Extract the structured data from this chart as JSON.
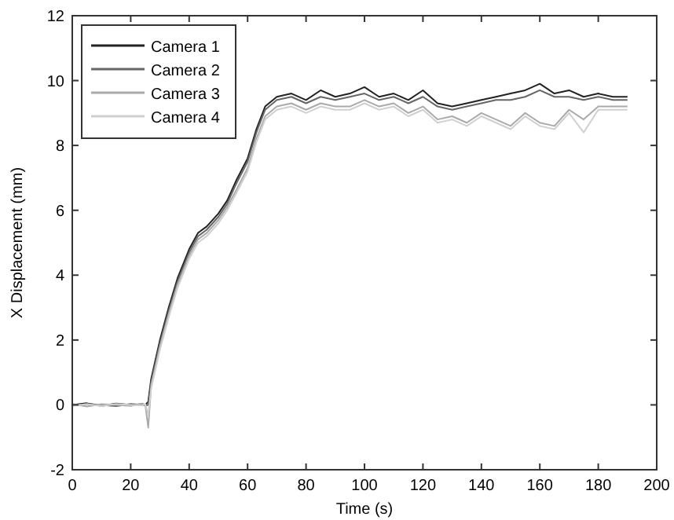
{
  "chart_data": {
    "type": "line",
    "xlabel": "Time (s)",
    "ylabel": "X Displacement (mm)",
    "xlim": [
      0,
      200
    ],
    "ylim": [
      -2,
      12
    ],
    "xticks": [
      0,
      20,
      40,
      60,
      80,
      100,
      120,
      140,
      160,
      180,
      200
    ],
    "yticks": [
      -2,
      0,
      2,
      4,
      6,
      8,
      10,
      12
    ],
    "grid": false,
    "legend": "top left",
    "line_style": "solid",
    "x": [
      0,
      5,
      10,
      15,
      20,
      24,
      25,
      26,
      27,
      30,
      33,
      36,
      40,
      43,
      46,
      50,
      53,
      56,
      60,
      63,
      66,
      70,
      75,
      80,
      85,
      90,
      95,
      100,
      105,
      110,
      115,
      120,
      125,
      130,
      135,
      140,
      145,
      150,
      155,
      160,
      165,
      170,
      175,
      180,
      185,
      190
    ],
    "series": [
      {
        "name": "Camera 1",
        "color": "#222222",
        "values": [
          0,
          0.05,
          -0.03,
          0.04,
          0,
          0.02,
          0,
          0.1,
          0.8,
          2,
          3,
          3.9,
          4.8,
          5.3,
          5.5,
          5.9,
          6.3,
          6.9,
          7.6,
          8.5,
          9.2,
          9.5,
          9.6,
          9.4,
          9.7,
          9.5,
          9.6,
          9.8,
          9.5,
          9.6,
          9.4,
          9.7,
          9.3,
          9.2,
          9.3,
          9.4,
          9.5,
          9.6,
          9.7,
          9.9,
          9.6,
          9.7,
          9.5,
          9.6,
          9.5,
          9.5
        ]
      },
      {
        "name": "Camera 2",
        "color": "#666666",
        "values": [
          -0.02,
          0.03,
          0,
          -0.04,
          0.03,
          0,
          -0.02,
          0,
          0.7,
          1.9,
          2.9,
          3.8,
          4.7,
          5.2,
          5.4,
          5.8,
          6.2,
          6.8,
          7.5,
          8.4,
          9.1,
          9.4,
          9.5,
          9.3,
          9.5,
          9.4,
          9.5,
          9.6,
          9.4,
          9.5,
          9.3,
          9.5,
          9.2,
          9.1,
          9.2,
          9.3,
          9.4,
          9.4,
          9.5,
          9.7,
          9.5,
          9.5,
          9.4,
          9.5,
          9.4,
          9.4
        ]
      },
      {
        "name": "Camera 3",
        "color": "#aaaaaa",
        "values": [
          0.03,
          -0.05,
          0.02,
          0,
          -0.03,
          0.04,
          0,
          -0.7,
          0.6,
          1.8,
          2.8,
          3.7,
          4.6,
          5.1,
          5.3,
          5.7,
          6.1,
          6.6,
          7.3,
          8.2,
          8.9,
          9.2,
          9.3,
          9.1,
          9.3,
          9.2,
          9.2,
          9.4,
          9.2,
          9.3,
          9.0,
          9.2,
          8.8,
          8.9,
          8.7,
          9.0,
          8.8,
          8.6,
          9.0,
          8.7,
          8.6,
          9.1,
          8.8,
          9.2,
          9.2,
          9.2
        ]
      },
      {
        "name": "Camera 4",
        "color": "#d0d0d0",
        "values": [
          -0.03,
          0.02,
          -0.04,
          0.03,
          0,
          -0.02,
          0.02,
          -0.3,
          0.5,
          1.7,
          2.7,
          3.6,
          4.5,
          5.0,
          5.2,
          5.6,
          6.0,
          6.5,
          7.2,
          8.1,
          8.8,
          9.1,
          9.2,
          9.0,
          9.2,
          9.1,
          9.1,
          9.3,
          9.1,
          9.2,
          8.9,
          9.1,
          8.7,
          8.8,
          8.6,
          8.9,
          8.7,
          8.5,
          8.9,
          8.6,
          8.5,
          9.0,
          8.4,
          9.1,
          9.1,
          9.1
        ]
      }
    ]
  }
}
